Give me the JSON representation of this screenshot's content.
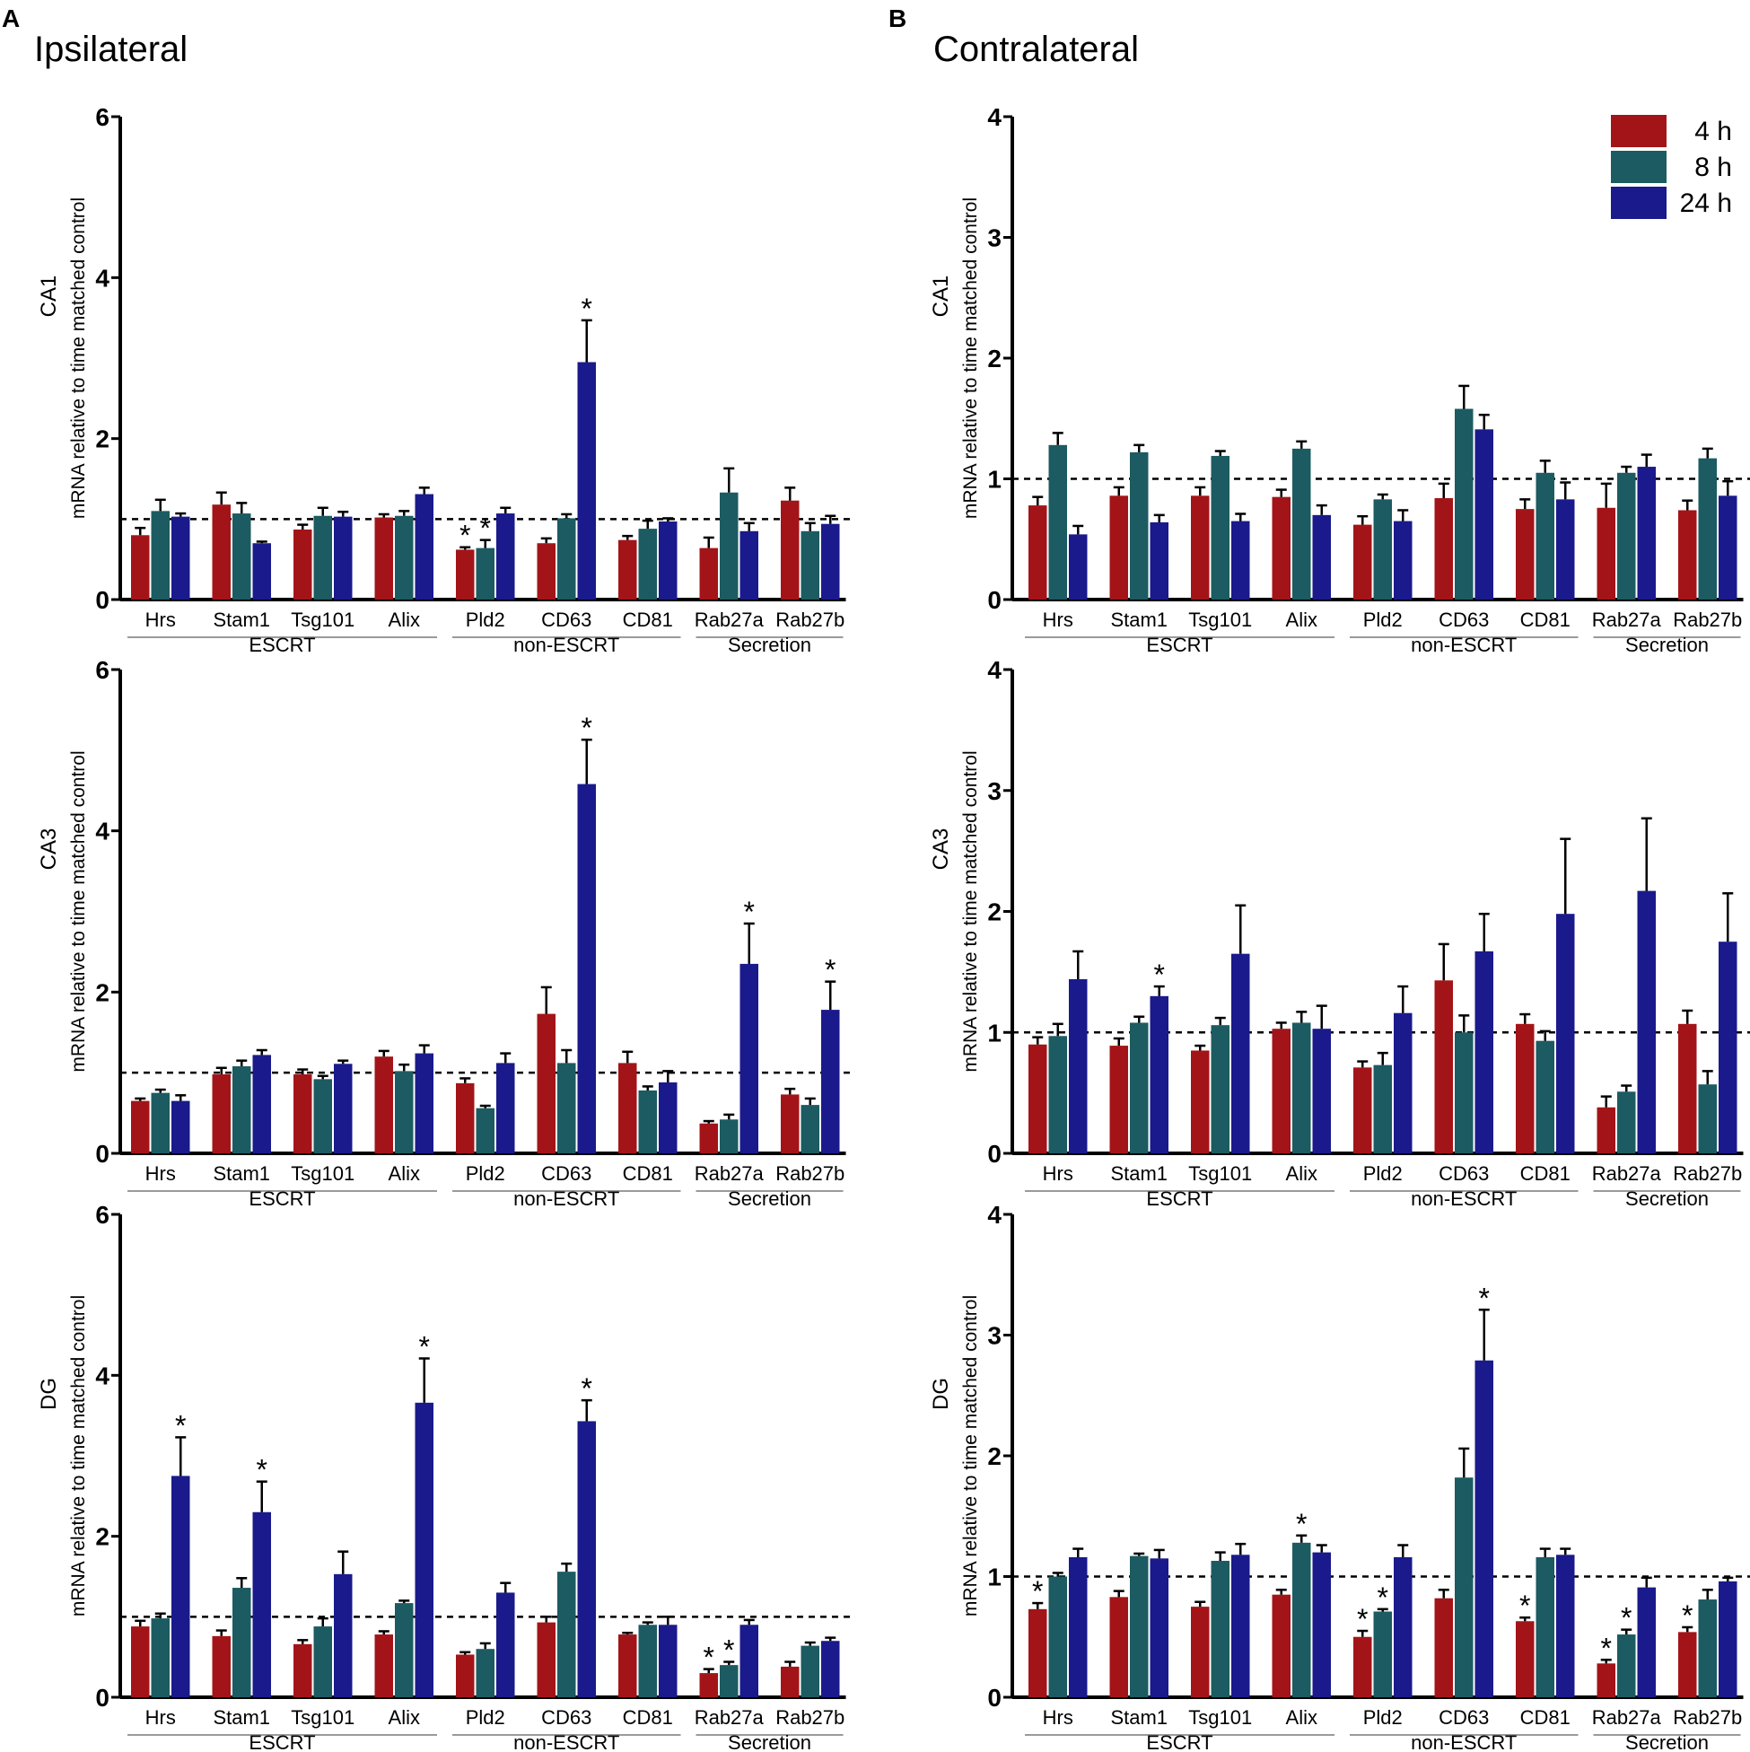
{
  "panels": [
    {
      "letter": "A",
      "heading": "Ipsilateral"
    },
    {
      "letter": "B",
      "heading": "Contralateral"
    }
  ],
  "colors": {
    "4 h": "#a31418",
    "8 h": "#1c5b61",
    "24 h": "#1a1a8c"
  },
  "chart_data": [
    {
      "type": "bar",
      "panel": "A",
      "region": "CA1",
      "ylabel": "mRNA relative to time matched control",
      "ylim": [
        0,
        6
      ],
      "yticks": [
        0,
        2,
        4,
        6
      ],
      "reference_line": 1,
      "categories": [
        "Hrs",
        "Stam1",
        "Tsg101",
        "Alix",
        "Pld2",
        "CD63",
        "CD81",
        "Rab27a",
        "Rab27b"
      ],
      "groups": [
        {
          "label": "ESCRT",
          "from": 0,
          "to": 3
        },
        {
          "label": "non-ESCRT",
          "from": 4,
          "to": 6
        },
        {
          "label": "Secretion",
          "from": 7,
          "to": 8
        }
      ],
      "series": [
        {
          "name": "4 h",
          "values": [
            0.8,
            1.18,
            0.87,
            1.02,
            0.62,
            0.7,
            0.74,
            0.64,
            1.23
          ],
          "errors": [
            0.09,
            0.15,
            0.06,
            0.04,
            0.03,
            0.06,
            0.05,
            0.13,
            0.16
          ],
          "sig": [
            0,
            0,
            0,
            0,
            1,
            0,
            0,
            0,
            0
          ]
        },
        {
          "name": "8 h",
          "values": [
            1.1,
            1.07,
            1.04,
            1.04,
            0.64,
            1.01,
            0.88,
            1.33,
            0.85
          ],
          "errors": [
            0.14,
            0.13,
            0.1,
            0.06,
            0.1,
            0.05,
            0.1,
            0.3,
            0.1
          ],
          "sig": [
            0,
            0,
            0,
            0,
            1,
            0,
            0,
            0,
            0
          ]
        },
        {
          "name": "24 h",
          "values": [
            1.03,
            0.7,
            1.03,
            1.31,
            1.07,
            2.95,
            0.97,
            0.85,
            0.94
          ],
          "errors": [
            0.04,
            0.02,
            0.06,
            0.08,
            0.07,
            0.52,
            0.04,
            0.1,
            0.1
          ],
          "sig": [
            0,
            0,
            0,
            0,
            0,
            1,
            0,
            0,
            0
          ]
        }
      ]
    },
    {
      "type": "bar",
      "panel": "A",
      "region": "CA3",
      "ylabel": "mRNA relative to time matched control",
      "ylim": [
        0,
        6
      ],
      "yticks": [
        0,
        2,
        4,
        6
      ],
      "reference_line": 1,
      "categories": [
        "Hrs",
        "Stam1",
        "Tsg101",
        "Alix",
        "Pld2",
        "CD63",
        "CD81",
        "Rab27a",
        "Rab27b"
      ],
      "groups": [
        {
          "label": "ESCRT",
          "from": 0,
          "to": 3
        },
        {
          "label": "non-ESCRT",
          "from": 4,
          "to": 6
        },
        {
          "label": "Secretion",
          "from": 7,
          "to": 8
        }
      ],
      "series": [
        {
          "name": "4 h",
          "values": [
            0.65,
            0.98,
            0.98,
            1.2,
            0.87,
            1.73,
            1.12,
            0.37,
            0.73
          ],
          "errors": [
            0.03,
            0.08,
            0.06,
            0.07,
            0.06,
            0.33,
            0.14,
            0.03,
            0.07
          ],
          "sig": [
            0,
            0,
            0,
            0,
            0,
            0,
            0,
            0,
            0
          ]
        },
        {
          "name": "8 h",
          "values": [
            0.75,
            1.08,
            0.92,
            1.02,
            0.56,
            1.12,
            0.78,
            0.42,
            0.6
          ],
          "errors": [
            0.04,
            0.07,
            0.04,
            0.08,
            0.03,
            0.16,
            0.05,
            0.06,
            0.08
          ],
          "sig": [
            0,
            0,
            0,
            0,
            0,
            0,
            0,
            0,
            0
          ]
        },
        {
          "name": "24 h",
          "values": [
            0.65,
            1.22,
            1.11,
            1.24,
            1.12,
            4.58,
            0.88,
            2.35,
            1.78
          ],
          "errors": [
            0.07,
            0.06,
            0.04,
            0.1,
            0.12,
            0.55,
            0.14,
            0.5,
            0.35
          ],
          "sig": [
            0,
            0,
            0,
            0,
            0,
            1,
            0,
            1,
            1
          ]
        }
      ]
    },
    {
      "type": "bar",
      "panel": "A",
      "region": "DG",
      "ylabel": "mRNA relative to time matched control",
      "ylim": [
        0,
        6
      ],
      "yticks": [
        0,
        2,
        4,
        6
      ],
      "reference_line": 1,
      "categories": [
        "Hrs",
        "Stam1",
        "Tsg101",
        "Alix",
        "Pld2",
        "CD63",
        "CD81",
        "Rab27a",
        "Rab27b"
      ],
      "groups": [
        {
          "label": "ESCRT",
          "from": 0,
          "to": 3
        },
        {
          "label": "non-ESCRT",
          "from": 4,
          "to": 6
        },
        {
          "label": "Secretion",
          "from": 7,
          "to": 8
        }
      ],
      "series": [
        {
          "name": "4 h",
          "values": [
            0.88,
            0.76,
            0.66,
            0.78,
            0.53,
            0.93,
            0.78,
            0.3,
            0.38
          ],
          "errors": [
            0.07,
            0.07,
            0.05,
            0.04,
            0.03,
            0.07,
            0.02,
            0.05,
            0.06
          ],
          "sig": [
            0,
            0,
            0,
            0,
            0,
            0,
            0,
            1,
            0
          ]
        },
        {
          "name": "8 h",
          "values": [
            0.98,
            1.36,
            0.88,
            1.17,
            0.6,
            1.56,
            0.9,
            0.4,
            0.64
          ],
          "errors": [
            0.06,
            0.12,
            0.1,
            0.03,
            0.07,
            0.1,
            0.03,
            0.04,
            0.04
          ],
          "sig": [
            0,
            0,
            0,
            0,
            0,
            0,
            0,
            1,
            0
          ]
        },
        {
          "name": "24 h",
          "values": [
            2.75,
            2.3,
            1.53,
            3.66,
            1.3,
            3.43,
            0.9,
            0.9,
            0.7
          ],
          "errors": [
            0.48,
            0.38,
            0.28,
            0.55,
            0.12,
            0.26,
            0.1,
            0.06,
            0.04
          ],
          "sig": [
            1,
            1,
            0,
            1,
            0,
            1,
            0,
            0,
            0
          ]
        }
      ]
    },
    {
      "type": "bar",
      "panel": "B",
      "region": "CA1",
      "ylabel": "mRNA relative to time matched control",
      "ylim": [
        0,
        4
      ],
      "yticks": [
        0,
        1,
        2,
        3,
        4
      ],
      "reference_line": 1,
      "categories": [
        "Hrs",
        "Stam1",
        "Tsg101",
        "Alix",
        "Pld2",
        "CD63",
        "CD81",
        "Rab27a",
        "Rab27b"
      ],
      "groups": [
        {
          "label": "ESCRT",
          "from": 0,
          "to": 3
        },
        {
          "label": "non-ESCRT",
          "from": 4,
          "to": 6
        },
        {
          "label": "Secretion",
          "from": 7,
          "to": 8
        }
      ],
      "legend": {
        "position": "top-right",
        "entries": [
          "4 h",
          "8 h",
          "24 h"
        ]
      },
      "series": [
        {
          "name": "4 h",
          "values": [
            0.78,
            0.86,
            0.86,
            0.85,
            0.62,
            0.84,
            0.75,
            0.76,
            0.74
          ],
          "errors": [
            0.07,
            0.07,
            0.07,
            0.06,
            0.07,
            0.12,
            0.08,
            0.2,
            0.08
          ],
          "sig": [
            0,
            0,
            0,
            0,
            0,
            0,
            0,
            0,
            0
          ]
        },
        {
          "name": "8 h",
          "values": [
            1.28,
            1.22,
            1.19,
            1.25,
            0.83,
            1.58,
            1.05,
            1.05,
            1.17
          ],
          "errors": [
            0.1,
            0.06,
            0.04,
            0.06,
            0.04,
            0.19,
            0.1,
            0.05,
            0.08
          ],
          "sig": [
            0,
            0,
            0,
            0,
            0,
            0,
            0,
            0,
            0
          ]
        },
        {
          "name": "24 h",
          "values": [
            0.54,
            0.64,
            0.65,
            0.7,
            0.65,
            1.41,
            0.83,
            1.1,
            0.86
          ],
          "errors": [
            0.07,
            0.06,
            0.06,
            0.08,
            0.09,
            0.12,
            0.14,
            0.1,
            0.12
          ],
          "sig": [
            0,
            0,
            0,
            0,
            0,
            0,
            0,
            0,
            0
          ]
        }
      ]
    },
    {
      "type": "bar",
      "panel": "B",
      "region": "CA3",
      "ylabel": "mRNA relative to time matched control",
      "ylim": [
        0,
        4
      ],
      "yticks": [
        0,
        1,
        2,
        3,
        4
      ],
      "reference_line": 1,
      "categories": [
        "Hrs",
        "Stam1",
        "Tsg101",
        "Alix",
        "Pld2",
        "CD63",
        "CD81",
        "Rab27a",
        "Rab27b"
      ],
      "groups": [
        {
          "label": "ESCRT",
          "from": 0,
          "to": 3
        },
        {
          "label": "non-ESCRT",
          "from": 4,
          "to": 6
        },
        {
          "label": "Secretion",
          "from": 7,
          "to": 8
        }
      ],
      "series": [
        {
          "name": "4 h",
          "values": [
            0.9,
            0.89,
            0.85,
            1.03,
            0.71,
            1.43,
            1.07,
            0.38,
            1.07
          ],
          "errors": [
            0.06,
            0.06,
            0.04,
            0.05,
            0.05,
            0.3,
            0.08,
            0.09,
            0.11
          ],
          "sig": [
            0,
            0,
            0,
            0,
            0,
            0,
            0,
            0,
            0
          ]
        },
        {
          "name": "8 h",
          "values": [
            0.97,
            1.08,
            1.06,
            1.08,
            0.73,
            1.0,
            0.93,
            0.51,
            0.57
          ],
          "errors": [
            0.1,
            0.05,
            0.06,
            0.09,
            0.1,
            0.14,
            0.08,
            0.05,
            0.11
          ],
          "sig": [
            0,
            0,
            0,
            0,
            0,
            0,
            0,
            0,
            0
          ]
        },
        {
          "name": "24 h",
          "values": [
            1.44,
            1.3,
            1.65,
            1.03,
            1.16,
            1.67,
            1.98,
            2.17,
            1.75
          ],
          "errors": [
            0.23,
            0.08,
            0.4,
            0.19,
            0.22,
            0.31,
            0.62,
            0.6,
            0.4
          ],
          "sig": [
            0,
            1,
            0,
            0,
            0,
            0,
            0,
            0,
            0
          ]
        }
      ]
    },
    {
      "type": "bar",
      "panel": "B",
      "region": "DG",
      "ylabel": "mRNA relative to time matched control",
      "ylim": [
        0,
        4
      ],
      "yticks": [
        0,
        1,
        2,
        3,
        4
      ],
      "reference_line": 1,
      "categories": [
        "Hrs",
        "Stam1",
        "Tsg101",
        "Alix",
        "Pld2",
        "CD63",
        "CD81",
        "Rab27a",
        "Rab27b"
      ],
      "groups": [
        {
          "label": "ESCRT",
          "from": 0,
          "to": 3
        },
        {
          "label": "non-ESCRT",
          "from": 4,
          "to": 6
        },
        {
          "label": "Secretion",
          "from": 7,
          "to": 8
        }
      ],
      "series": [
        {
          "name": "4 h",
          "values": [
            0.73,
            0.83,
            0.75,
            0.85,
            0.5,
            0.82,
            0.63,
            0.28,
            0.54
          ],
          "errors": [
            0.05,
            0.05,
            0.04,
            0.04,
            0.05,
            0.07,
            0.03,
            0.03,
            0.04
          ],
          "sig": [
            1,
            0,
            0,
            0,
            1,
            0,
            1,
            1,
            1
          ]
        },
        {
          "name": "8 h",
          "values": [
            1.0,
            1.17,
            1.13,
            1.28,
            0.71,
            1.82,
            1.16,
            0.52,
            0.81
          ],
          "errors": [
            0.03,
            0.02,
            0.07,
            0.06,
            0.02,
            0.24,
            0.07,
            0.04,
            0.08
          ],
          "sig": [
            0,
            0,
            0,
            1,
            1,
            0,
            0,
            1,
            0
          ]
        },
        {
          "name": "24 h",
          "values": [
            1.16,
            1.15,
            1.18,
            1.2,
            1.16,
            2.79,
            1.18,
            0.91,
            0.96
          ],
          "errors": [
            0.07,
            0.07,
            0.09,
            0.06,
            0.1,
            0.42,
            0.05,
            0.08,
            0.03
          ],
          "sig": [
            0,
            0,
            0,
            0,
            0,
            1,
            0,
            0,
            0
          ]
        }
      ]
    }
  ]
}
